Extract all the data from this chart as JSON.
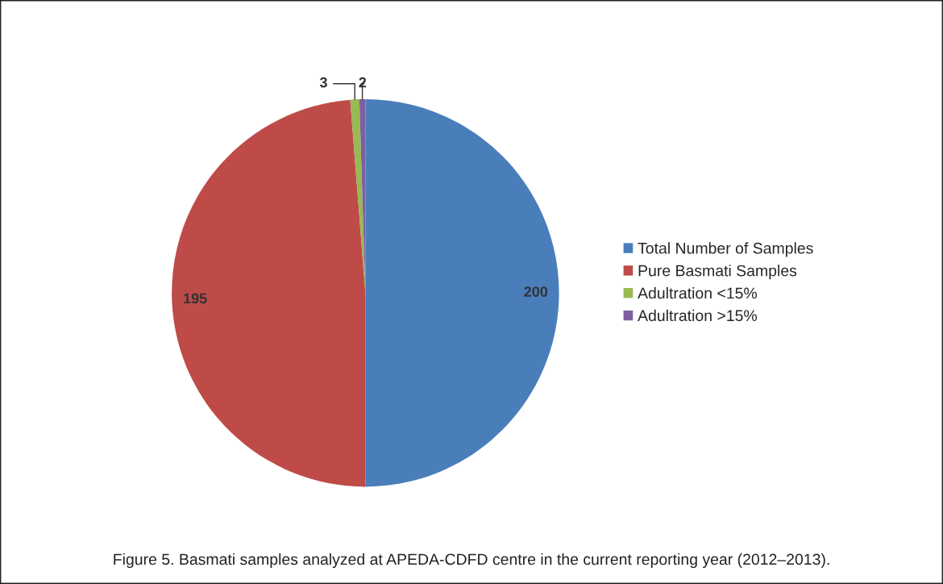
{
  "chart_data": {
    "type": "pie",
    "categories": [
      "Total Number of Samples",
      "Pure Basmati Samples",
      "Adultration <15%",
      "Adultration >15%"
    ],
    "values": [
      200,
      195,
      3,
      2
    ],
    "colors": [
      "#4a7ebb",
      "#be4b48",
      "#98b954",
      "#7d60a0"
    ],
    "data_labels": true,
    "legend": "right",
    "annotations": [
      "Figure 5. Basmati samples analyzed at APEDA-CDFD centre in the current reporting year (2012–2013)."
    ]
  }
}
